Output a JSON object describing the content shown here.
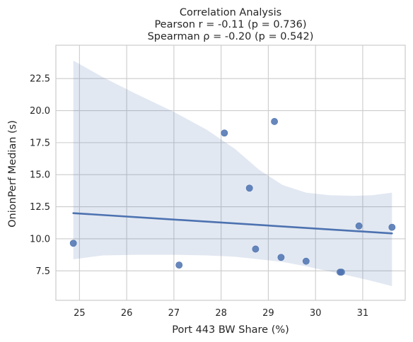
{
  "chart_data": {
    "type": "scatter",
    "title": "Correlation Analysis",
    "subtitle_lines": [
      "Pearson r = -0.11 (p = 0.736)",
      "Spearman ρ = -0.20 (p = 0.542)"
    ],
    "xlabel": "Port 443 BW Share (%)",
    "ylabel": "OnionPerf Median (s)",
    "xlim": [
      24.5,
      31.9
    ],
    "ylim": [
      5.2,
      25.1
    ],
    "xticks": [
      25,
      26,
      27,
      28,
      29,
      30,
      31
    ],
    "yticks": [
      7.5,
      10.0,
      12.5,
      15.0,
      17.5,
      20.0,
      22.5
    ],
    "xtick_labels": [
      "25",
      "26",
      "27",
      "28",
      "29",
      "30",
      "31"
    ],
    "ytick_labels": [
      "7.5",
      "10.0",
      "12.5",
      "15.0",
      "17.5",
      "20.0",
      "22.5"
    ],
    "grid": true,
    "points": {
      "x": [
        24.87,
        27.11,
        28.07,
        28.6,
        28.73,
        29.13,
        29.27,
        29.8,
        30.52,
        30.55,
        30.92,
        31.62
      ],
      "y": [
        9.65,
        7.95,
        18.25,
        13.95,
        9.2,
        19.15,
        8.55,
        8.25,
        7.4,
        7.4,
        11.0,
        10.9
      ]
    },
    "regression_line": {
      "x": [
        24.87,
        31.62
      ],
      "y": [
        12.0,
        10.42
      ]
    },
    "confidence_band": {
      "x": [
        24.87,
        25.5,
        26.2,
        27.0,
        27.7,
        28.3,
        28.8,
        29.3,
        29.8,
        30.3,
        30.8,
        31.2,
        31.62
      ],
      "upper": [
        23.9,
        22.6,
        21.3,
        19.9,
        18.5,
        17.0,
        15.4,
        14.2,
        13.6,
        13.4,
        13.35,
        13.4,
        13.6
      ],
      "lower": [
        8.4,
        8.7,
        8.75,
        8.75,
        8.7,
        8.6,
        8.4,
        8.2,
        7.85,
        7.45,
        7.05,
        6.7,
        6.3
      ]
    },
    "colors": {
      "points": "#4c72b0",
      "line": "#4c72b0",
      "band": "#4c72b0",
      "grid": "#cccccc",
      "spine": "#cccccc"
    }
  }
}
